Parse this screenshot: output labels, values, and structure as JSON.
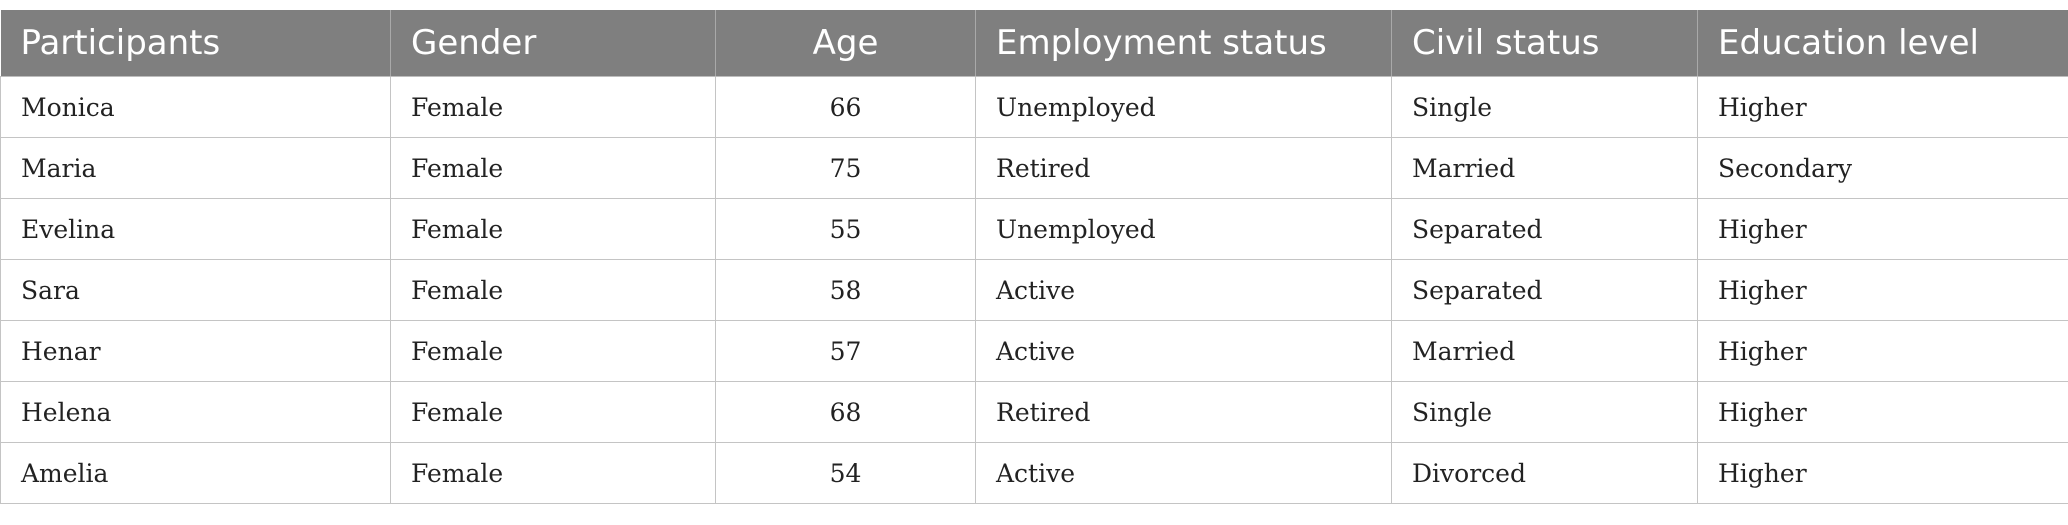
{
  "table": {
    "headers": [
      "Participants",
      "Gender",
      "Age",
      "Employment status",
      "Civil status",
      "Education level"
    ],
    "rows": [
      [
        "Monica",
        "Female",
        "66",
        "Unemployed",
        "Single",
        "Higher"
      ],
      [
        "Maria",
        "Female",
        "75",
        "Retired",
        "Married",
        "Secondary"
      ],
      [
        "Evelina",
        "Female",
        "55",
        "Unemployed",
        "Separated",
        "Higher"
      ],
      [
        "Sara",
        "Female",
        "58",
        "Active",
        "Separated",
        "Higher"
      ],
      [
        "Henar",
        "Female",
        "57",
        "Active",
        "Married",
        "Higher"
      ],
      [
        "Helena",
        "Female",
        "68",
        "Retired",
        "Single",
        "Higher"
      ],
      [
        "Amelia",
        "Female",
        "54",
        "Active",
        "Divorced",
        "Higher"
      ]
    ]
  }
}
